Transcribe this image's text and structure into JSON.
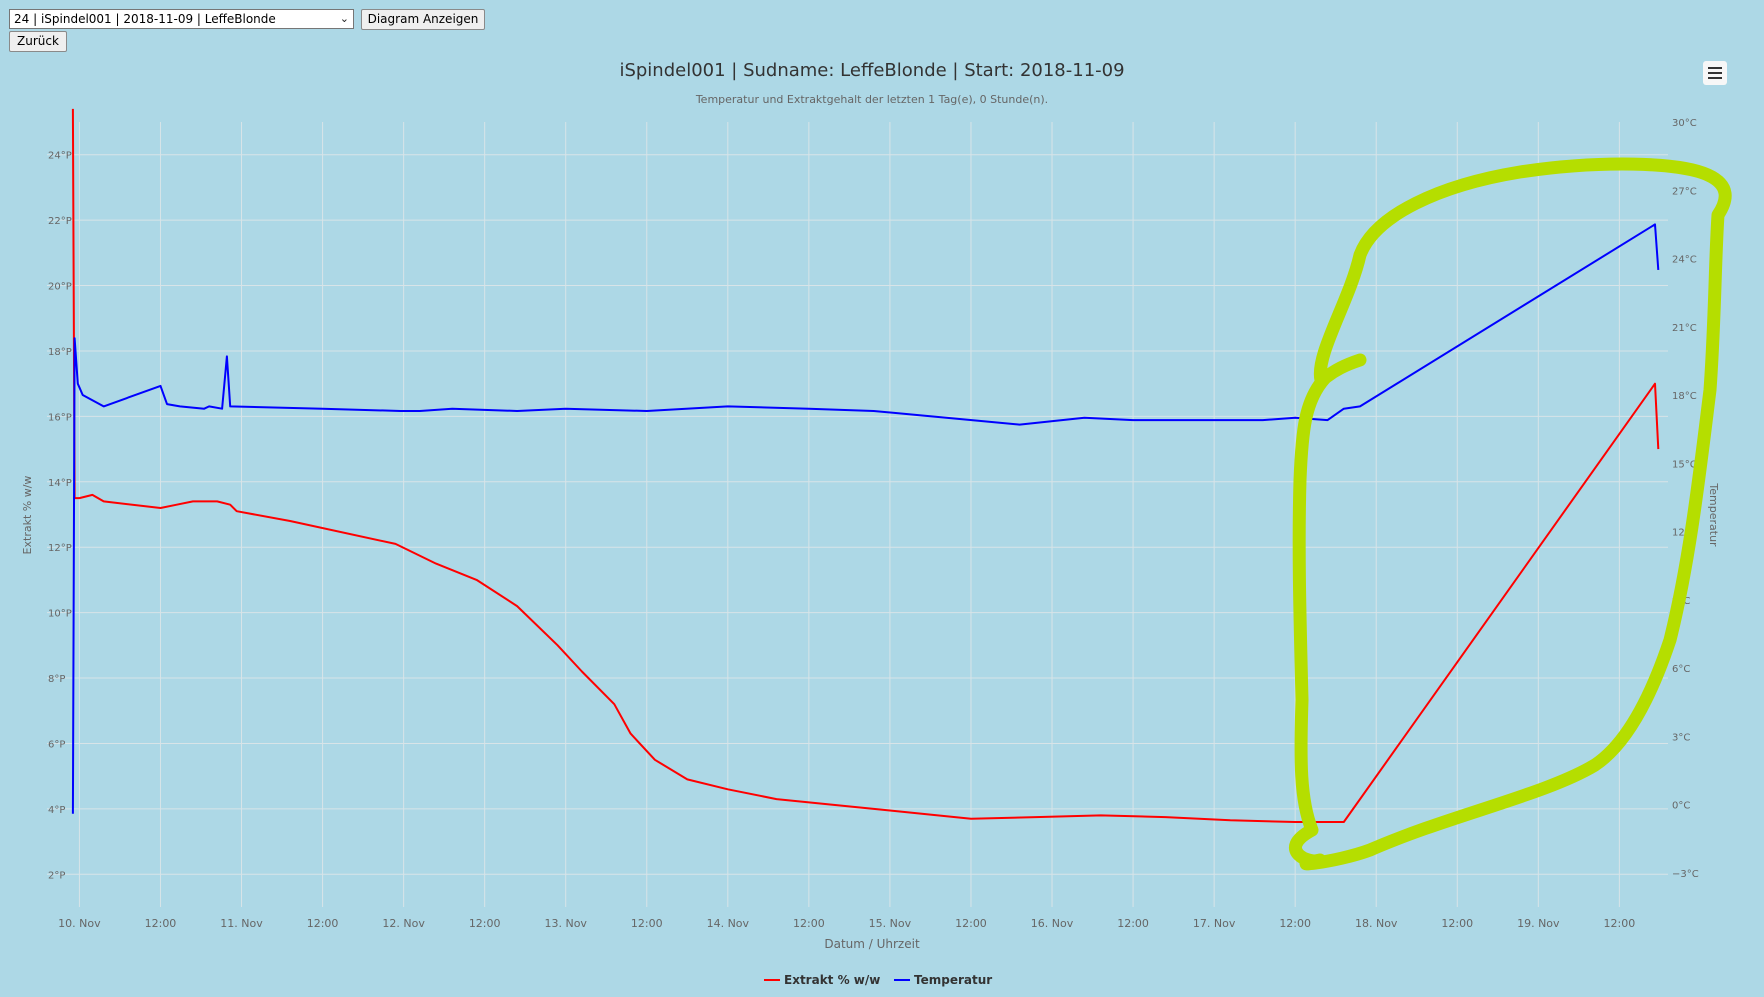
{
  "controls": {
    "select_value": "24 | iSpindel001 | 2018-11-09 | LeffeBlonde",
    "show_button": "Diagram Anzeigen",
    "back_button": "Zurück"
  },
  "chart_data": {
    "type": "line",
    "title": "iSpindel001 | Sudname: LeffeBlonde | Start: 2018-11-09",
    "subtitle": "Temperatur und Extraktgehalt der letzten 1 Tag(e), 0 Stunde(n).",
    "xlabel": "Datum / Uhrzeit",
    "ylabel_left": "Extrakt % w/w",
    "ylabel_right": "Temperatur",
    "x_unit": "days since 10 Nov 00:00",
    "xlim": [
      -0.2,
      9.8
    ],
    "x_ticks": [
      {
        "v": 0,
        "label": "10. Nov"
      },
      {
        "v": 0.5,
        "label": "12:00"
      },
      {
        "v": 1,
        "label": "11. Nov"
      },
      {
        "v": 1.5,
        "label": "12:00"
      },
      {
        "v": 2,
        "label": "12. Nov"
      },
      {
        "v": 2.5,
        "label": "12:00"
      },
      {
        "v": 3,
        "label": "13. Nov"
      },
      {
        "v": 3.5,
        "label": "12:00"
      },
      {
        "v": 4,
        "label": "14. Nov"
      },
      {
        "v": 4.5,
        "label": "12:00"
      },
      {
        "v": 5,
        "label": "15. Nov"
      },
      {
        "v": 5.5,
        "label": "12:00"
      },
      {
        "v": 6,
        "label": "16. Nov"
      },
      {
        "v": 6.5,
        "label": "12:00"
      },
      {
        "v": 7,
        "label": "17. Nov"
      },
      {
        "v": 7.5,
        "label": "12:00"
      },
      {
        "v": 8,
        "label": "18. Nov"
      },
      {
        "v": 8.5,
        "label": "12:00"
      },
      {
        "v": 9,
        "label": "19. Nov"
      },
      {
        "v": 9.5,
        "label": "12:00"
      }
    ],
    "ylim_left": [
      1,
      25
    ],
    "y_ticks_left": [
      {
        "v": 2,
        "label": "2°P"
      },
      {
        "v": 4,
        "label": "4°P"
      },
      {
        "v": 6,
        "label": "6°P"
      },
      {
        "v": 8,
        "label": "8°P"
      },
      {
        "v": 10,
        "label": "10°P"
      },
      {
        "v": 12,
        "label": "12°P"
      },
      {
        "v": 14,
        "label": "14°P"
      },
      {
        "v": 16,
        "label": "16°P"
      },
      {
        "v": 18,
        "label": "18°P"
      },
      {
        "v": 20,
        "label": "20°P"
      },
      {
        "v": 22,
        "label": "22°P"
      },
      {
        "v": 24,
        "label": "24°P"
      }
    ],
    "ylim_right": [
      -4.5,
      30
    ],
    "y_ticks_right": [
      {
        "v": -3,
        "label": "−3°C"
      },
      {
        "v": 0,
        "label": "0°C"
      },
      {
        "v": 3,
        "label": "3°C"
      },
      {
        "v": 6,
        "label": "6°C"
      },
      {
        "v": 9,
        "label": "9°C"
      },
      {
        "v": 12,
        "label": "12°C"
      },
      {
        "v": 15,
        "label": "15°C"
      },
      {
        "v": 18,
        "label": "18°C"
      },
      {
        "v": 21,
        "label": "21°C"
      },
      {
        "v": 24,
        "label": "24°C"
      },
      {
        "v": 27,
        "label": "27°C"
      },
      {
        "v": 30,
        "label": "30°C"
      }
    ],
    "grid": true,
    "legend_position": "bottom-center",
    "series": [
      {
        "name": "Extrakt % w/w",
        "axis": "left",
        "color": "#ff0000",
        "points": [
          [
            -0.04,
            25.4
          ],
          [
            -0.03,
            13.5
          ],
          [
            0.0,
            13.5
          ],
          [
            0.08,
            13.6
          ],
          [
            0.15,
            13.4
          ],
          [
            0.5,
            13.2
          ],
          [
            0.6,
            13.3
          ],
          [
            0.7,
            13.4
          ],
          [
            0.85,
            13.4
          ],
          [
            0.93,
            13.3
          ],
          [
            0.97,
            13.1
          ],
          [
            1.3,
            12.8
          ],
          [
            1.95,
            12.1
          ],
          [
            2.2,
            11.5
          ],
          [
            2.45,
            11.0
          ],
          [
            2.7,
            10.2
          ],
          [
            2.95,
            9.0
          ],
          [
            3.1,
            8.2
          ],
          [
            3.3,
            7.2
          ],
          [
            3.4,
            6.3
          ],
          [
            3.55,
            5.5
          ],
          [
            3.75,
            4.9
          ],
          [
            4.0,
            4.6
          ],
          [
            4.3,
            4.3
          ],
          [
            4.6,
            4.15
          ],
          [
            5.0,
            3.95
          ],
          [
            5.5,
            3.7
          ],
          [
            5.9,
            3.75
          ],
          [
            6.3,
            3.8
          ],
          [
            6.7,
            3.75
          ],
          [
            7.1,
            3.65
          ],
          [
            7.5,
            3.6
          ],
          [
            7.8,
            3.6
          ],
          [
            9.72,
            17.0
          ],
          [
            9.74,
            15.0
          ]
        ]
      },
      {
        "name": "Temperatur",
        "axis": "right",
        "color": "#0000ff",
        "points": [
          [
            -0.04,
            -0.4
          ],
          [
            -0.03,
            20.5
          ],
          [
            -0.01,
            18.5
          ],
          [
            0.02,
            18.0
          ],
          [
            0.15,
            17.5
          ],
          [
            0.5,
            18.4
          ],
          [
            0.54,
            17.6
          ],
          [
            0.62,
            17.5
          ],
          [
            0.77,
            17.4
          ],
          [
            0.8,
            17.5
          ],
          [
            0.88,
            17.4
          ],
          [
            0.91,
            19.7
          ],
          [
            0.93,
            17.5
          ],
          [
            1.5,
            17.4
          ],
          [
            1.98,
            17.3
          ],
          [
            2.1,
            17.3
          ],
          [
            2.3,
            17.4
          ],
          [
            2.7,
            17.3
          ],
          [
            3.0,
            17.4
          ],
          [
            3.5,
            17.3
          ],
          [
            4.0,
            17.5
          ],
          [
            4.5,
            17.4
          ],
          [
            4.9,
            17.3
          ],
          [
            5.2,
            17.1
          ],
          [
            5.8,
            16.7
          ],
          [
            6.2,
            17.0
          ],
          [
            6.5,
            16.9
          ],
          [
            6.9,
            16.9
          ],
          [
            7.3,
            16.9
          ],
          [
            7.5,
            17.0
          ],
          [
            7.7,
            16.9
          ],
          [
            7.8,
            17.4
          ],
          [
            7.9,
            17.5
          ],
          [
            9.72,
            25.5
          ],
          [
            9.74,
            23.5
          ]
        ]
      }
    ]
  }
}
